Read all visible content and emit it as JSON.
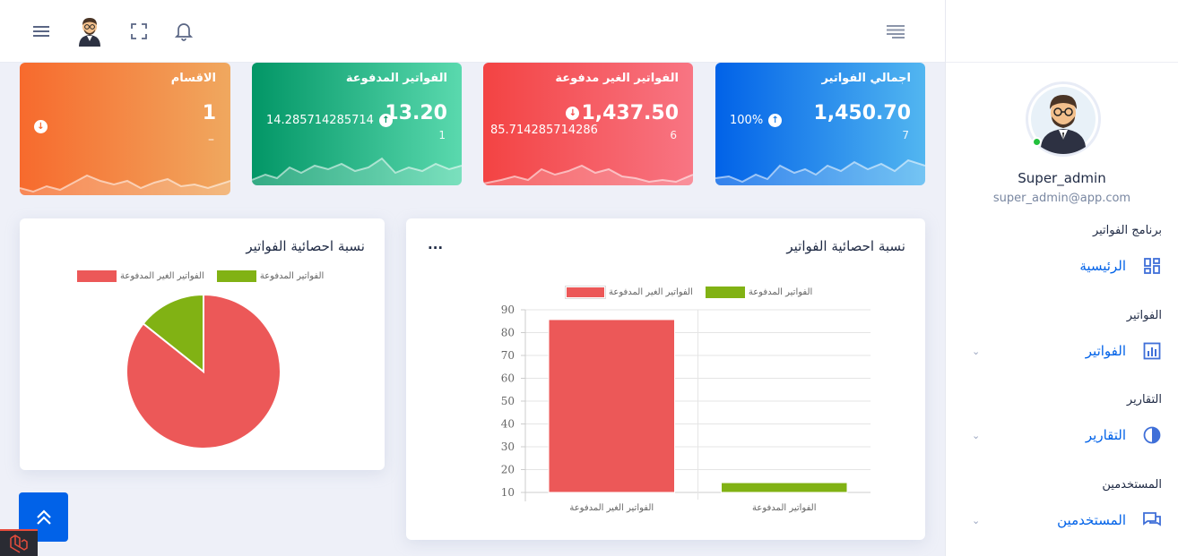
{
  "header": {
    "menu_icon": "hamburger-icon",
    "fullscreen_icon": "fullscreen-icon",
    "notification_icon": "bell-icon",
    "sidebar_toggle_icon": "align-right-icon"
  },
  "sidebar": {
    "user_name": "Super_admin",
    "user_email": "super_admin@app.com",
    "sections": [
      {
        "title": "برنامج الفواتير",
        "item": "الرئيسية",
        "icon": "dashboard-icon"
      },
      {
        "title": "الفواتير",
        "item": "الفواتير",
        "icon": "bar-chart-icon"
      },
      {
        "title": "التقارير",
        "item": "التقارير",
        "icon": "pie-chart-icon"
      },
      {
        "title": "المستخدمين",
        "item": "المستخدمين",
        "icon": "chat-icon"
      }
    ]
  },
  "cards": [
    {
      "title": "اجمالي الفواتير",
      "amount": "1,450.70",
      "count": "7",
      "percent": "100%",
      "color_from": "#0162e8",
      "color_to": "#52b6f0"
    },
    {
      "title": "الفواتير الغير مدفوعة",
      "amount": "1,437.50",
      "count": "6",
      "percent": "85.714285714286",
      "color_from": "#f34343",
      "color_to": "#f87583"
    },
    {
      "title": "الفواتير المدفوعة",
      "amount": "13.20",
      "count": "1",
      "percent": "14.285714285714",
      "color_from": "#029666",
      "color_to": "#5ad9ae"
    },
    {
      "title": "الاقسام",
      "amount": "1",
      "count": "–",
      "percent": "",
      "color_from": "#f76a2d",
      "color_to": "#f0a85f"
    }
  ],
  "bar_panel": {
    "title": "نسبة احصائية الفواتير",
    "menu": "...",
    "legend": [
      "الفواتير الغير المدفوعة",
      "الفواتير المدفوعة"
    ]
  },
  "pie_panel": {
    "title": "نسبة احصائية الفواتير",
    "legend": [
      "الفواتير الغير المدفوعة",
      "الفواتير المدفوعة"
    ]
  },
  "colors": {
    "unpaid": "#ec5858",
    "paid": "#81b214",
    "accent": "#0162e8"
  },
  "chart_data": [
    {
      "type": "bar",
      "categories": [
        "الفواتير الغير المدفوعة",
        "الفواتير المدفوعة"
      ],
      "series": [
        {
          "name": "الفواتير الغير المدفوعة",
          "values": [
            85.71,
            null
          ]
        },
        {
          "name": "الفواتير المدفوعة",
          "values": [
            null,
            14.29
          ]
        }
      ],
      "ylim": [
        10,
        90
      ],
      "yticks": [
        "90",
        "80",
        "70",
        "60",
        "50",
        "40",
        "30",
        "20",
        "10"
      ],
      "grid": true,
      "legend_position": "top"
    },
    {
      "type": "pie",
      "labels": [
        "الفواتير الغير المدفوعة",
        "الفواتير المدفوعة"
      ],
      "values": [
        85.71,
        14.29
      ],
      "legend_position": "top"
    }
  ]
}
